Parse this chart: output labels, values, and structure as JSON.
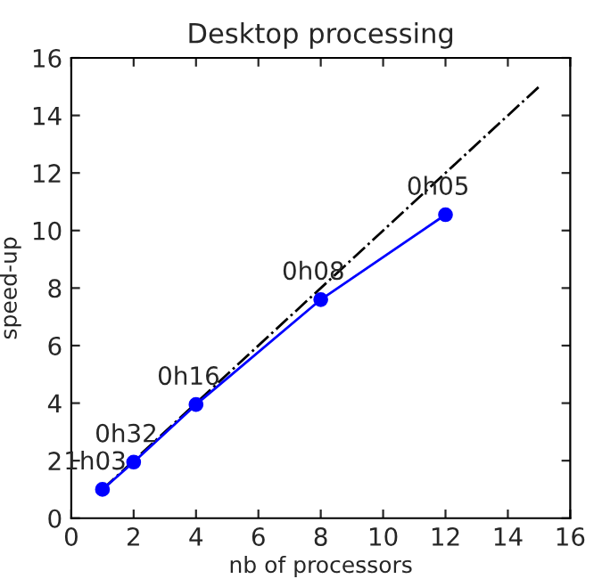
{
  "chart_data": {
    "type": "line",
    "title": "Desktop processing",
    "xlabel": "nb of processors",
    "ylabel": "speed-up",
    "series": [
      {
        "x": [
          1,
          15
        ],
        "values": [
          1,
          15
        ],
        "color": "#000000",
        "line_style": "dashdot",
        "marker": "none"
      },
      {
        "x": [
          1,
          2,
          4,
          8,
          12
        ],
        "values": [
          1.0,
          1.95,
          3.95,
          7.6,
          10.55
        ],
        "color": "#0000ff",
        "line_style": "solid",
        "marker": "circle"
      }
    ],
    "annotations": [
      {
        "text": "1h03",
        "x": 1,
        "y": 1.0
      },
      {
        "text": "0h32",
        "x": 2,
        "y": 1.95
      },
      {
        "text": "0h16",
        "x": 4,
        "y": 3.95
      },
      {
        "text": "0h08",
        "x": 8,
        "y": 7.6
      },
      {
        "text": "0h05",
        "x": 12,
        "y": 10.55
      }
    ],
    "xlim": [
      0,
      16
    ],
    "ylim": [
      0,
      16
    ],
    "xticks": [
      0,
      2,
      4,
      6,
      8,
      10,
      12,
      14,
      16
    ],
    "yticks": [
      0,
      2,
      4,
      6,
      8,
      10,
      12,
      14,
      16
    ],
    "grid": false
  }
}
